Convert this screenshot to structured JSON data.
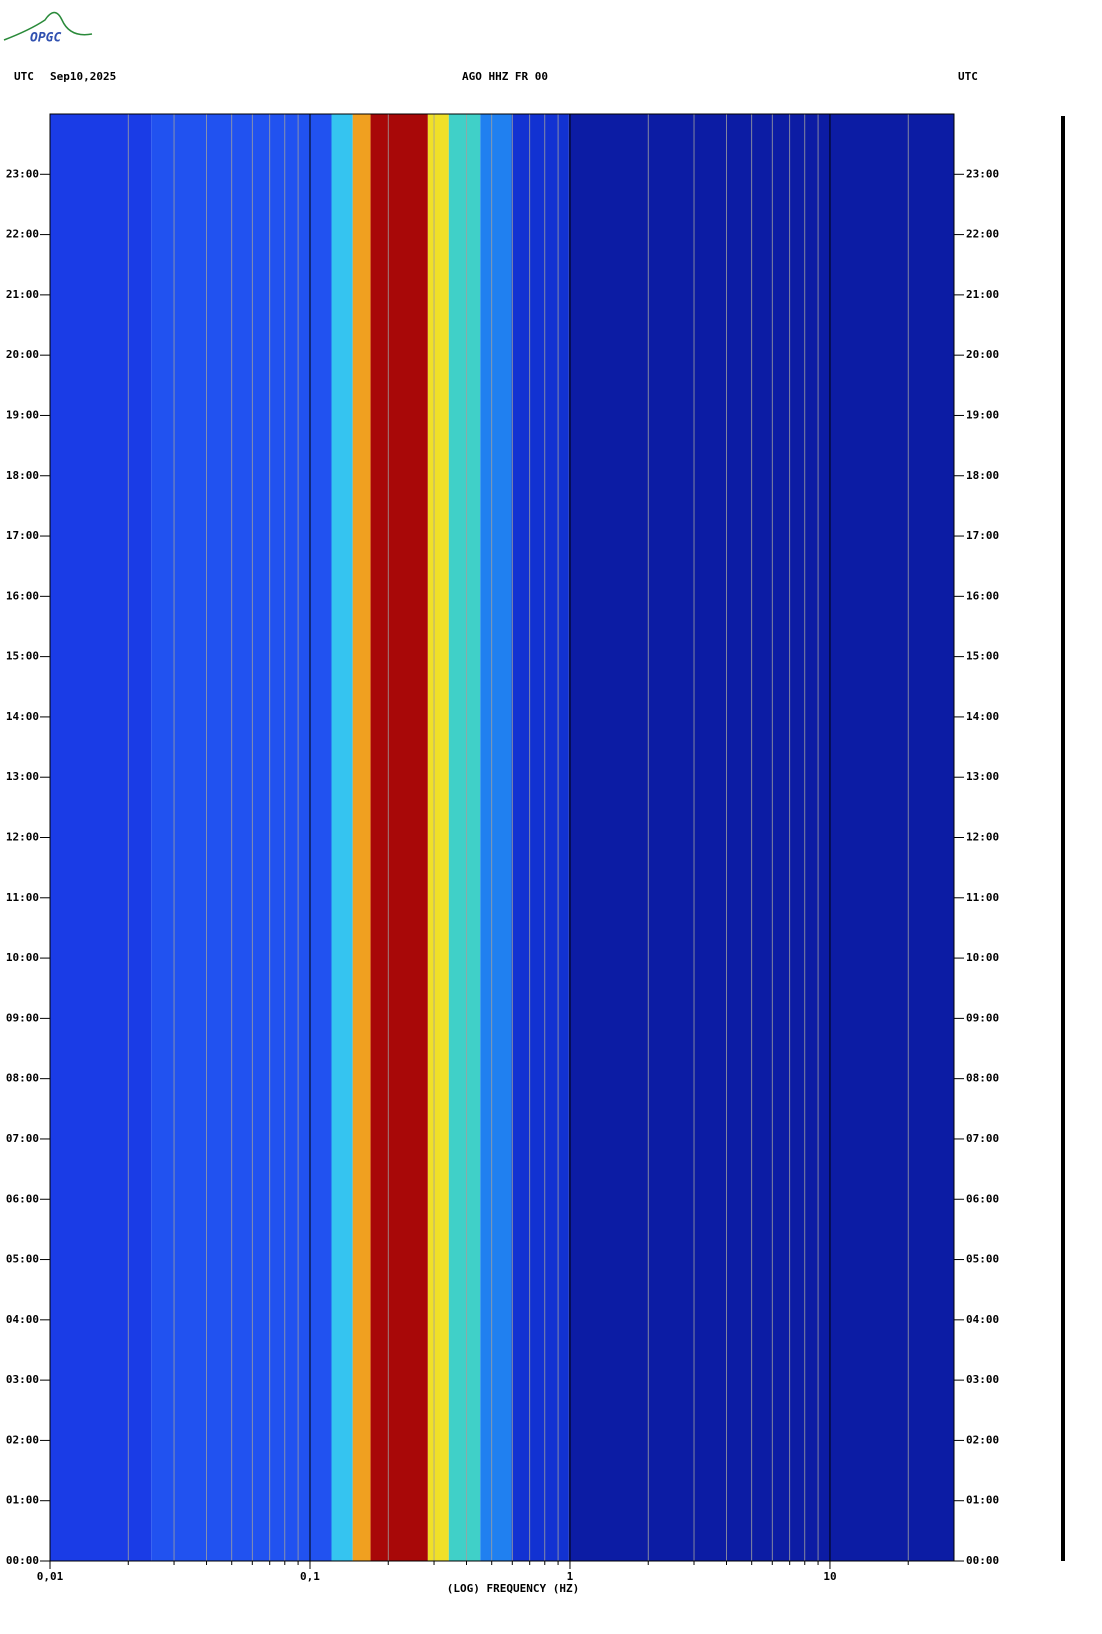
{
  "chart_data": {
    "type": "spectrogram",
    "time_zone": "UTC",
    "date": "Sep10,2025",
    "title": "AGO HHZ FR 00",
    "time_zone_right": "UTC",
    "xlabel": "(LOG) FREQUENCY (HZ)",
    "xscale": "log",
    "xlim": [
      0.01,
      30
    ],
    "xticks": [
      {
        "value": 0.01,
        "label": "0,01"
      },
      {
        "value": 0.1,
        "label": "0,1"
      },
      1,
      10
    ],
    "minor_xticks": [
      0.02,
      0.03,
      0.04,
      0.05,
      0.06,
      0.07,
      0.08,
      0.09,
      0.2,
      0.3,
      0.4,
      0.5,
      0.6,
      0.7,
      0.8,
      0.9,
      2,
      3,
      4,
      5,
      6,
      7,
      8,
      9,
      20
    ],
    "ylim": [
      0,
      24
    ],
    "yticks": [
      {
        "value": 0,
        "label": "00:00"
      },
      {
        "value": 1,
        "label": "01:00"
      },
      {
        "value": 2,
        "label": "02:00"
      },
      {
        "value": 3,
        "label": "03:00"
      },
      {
        "value": 4,
        "label": "04:00"
      },
      {
        "value": 5,
        "label": "05:00"
      },
      {
        "value": 6,
        "label": "06:00"
      },
      {
        "value": 7,
        "label": "07:00"
      },
      {
        "value": 8,
        "label": "08:00"
      },
      {
        "value": 9,
        "label": "09:00"
      },
      {
        "value": 10,
        "label": "10:00"
      },
      {
        "value": 11,
        "label": "11:00"
      },
      {
        "value": 12,
        "label": "12:00"
      },
      {
        "value": 13,
        "label": "13:00"
      },
      {
        "value": 14,
        "label": "14:00"
      },
      {
        "value": 15,
        "label": "15:00"
      },
      {
        "value": 16,
        "label": "16:00"
      },
      {
        "value": 17,
        "label": "17:00"
      },
      {
        "value": 18,
        "label": "18:00"
      },
      {
        "value": 19,
        "label": "19:00"
      },
      {
        "value": 20,
        "label": "20:00"
      },
      {
        "value": 21,
        "label": "21:00"
      },
      {
        "value": 22,
        "label": "22:00"
      },
      {
        "value": 23,
        "label": "23:00"
      }
    ],
    "bands": [
      {
        "from": 0.01,
        "to": 0.0245,
        "color": "#1a3ce6"
      },
      {
        "from": 0.0245,
        "to": 0.121,
        "color": "#2152f0"
      },
      {
        "from": 0.121,
        "to": 0.146,
        "color": "#35c4f0"
      },
      {
        "from": 0.146,
        "to": 0.171,
        "color": "#f0a020"
      },
      {
        "from": 0.171,
        "to": 0.284,
        "color": "#a80808"
      },
      {
        "from": 0.284,
        "to": 0.342,
        "color": "#f0e028"
      },
      {
        "from": 0.342,
        "to": 0.452,
        "color": "#40d0c8"
      },
      {
        "from": 0.452,
        "to": 0.596,
        "color": "#2080f0"
      },
      {
        "from": 0.596,
        "to": 0.99,
        "color": "#1232d2"
      },
      {
        "from": 0.99,
        "to": 30,
        "color": "#0c1ca4"
      }
    ]
  }
}
